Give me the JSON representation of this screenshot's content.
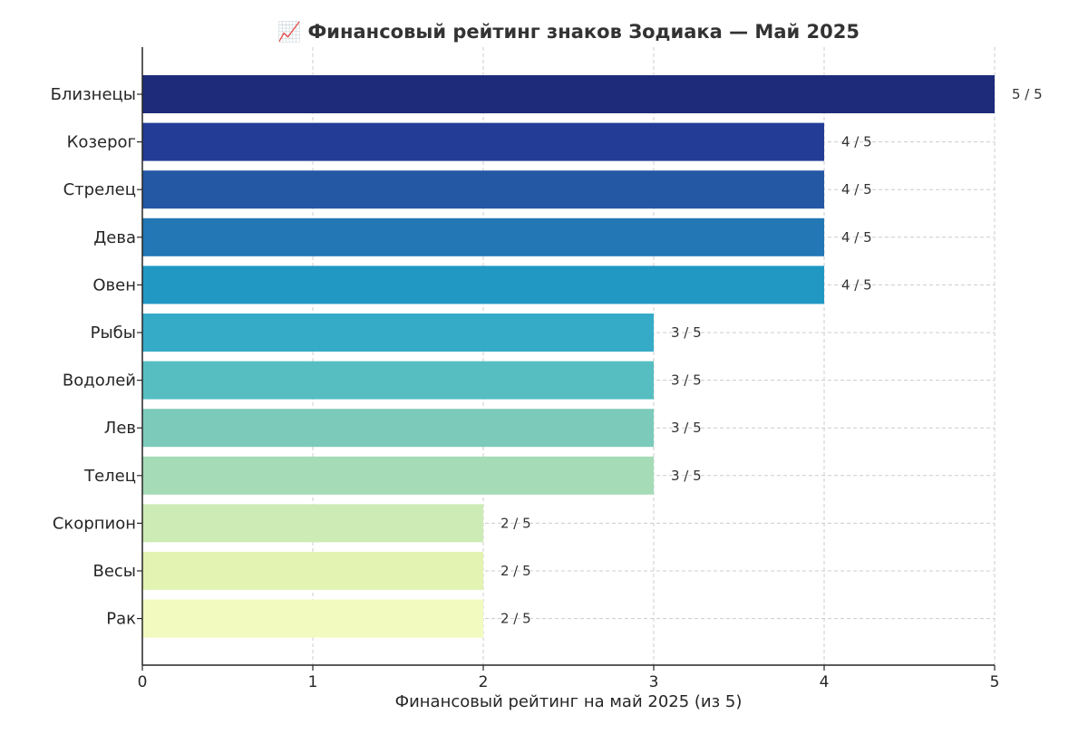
{
  "chart_data": {
    "type": "bar",
    "orientation": "horizontal",
    "title": "📈 Финансовый рейтинг знаков Зодиака — Май 2025",
    "xlabel": "Финансовый рейтинг на май 2025 (из 5)",
    "ylabel": "",
    "xlim": [
      0,
      5
    ],
    "x_ticks": [
      "0",
      "1",
      "2",
      "3",
      "4",
      "5"
    ],
    "grid": true,
    "categories": [
      "Близнецы",
      "Козерог",
      "Стрелец",
      "Дева",
      "Овен",
      "Рыбы",
      "Водолей",
      "Лев",
      "Телец",
      "Скорпион",
      "Весы",
      "Рак"
    ],
    "values": [
      5,
      4,
      4,
      4,
      4,
      3,
      3,
      3,
      3,
      2,
      2,
      2
    ],
    "data_labels": [
      "5 / 5",
      "4 / 5",
      "4 / 5",
      "4 / 5",
      "4 / 5",
      "3 / 5",
      "3 / 5",
      "3 / 5",
      "3 / 5",
      "2 / 5",
      "2 / 5",
      "2 / 5"
    ],
    "colors": [
      "#1d2b7a",
      "#233c96",
      "#2458a5",
      "#2277b4",
      "#2198c4",
      "#36abc8",
      "#56bec1",
      "#7ccbba",
      "#a5dbb6",
      "#cdebb5",
      "#e2f3b2",
      "#f2fabf"
    ]
  }
}
